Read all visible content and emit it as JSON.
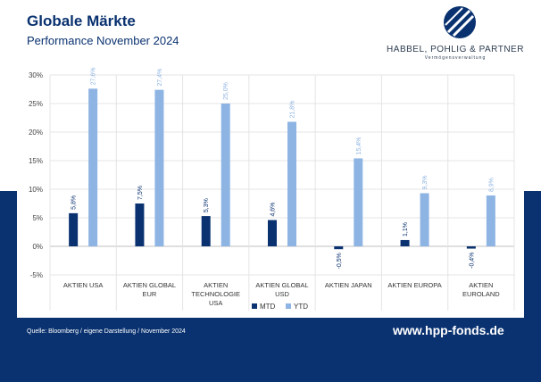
{
  "header": {
    "title": "Globale Märkte",
    "subtitle": "Performance November 2024"
  },
  "logo": {
    "name": "HABBEL, POHLIG & PARTNER",
    "tagline": "Vermögensverwaltung"
  },
  "footer": {
    "source": "Quelle: Bloomberg / eigene Darstellung / November 2024",
    "website": "www.hpp-fonds.de"
  },
  "colors": {
    "navy": "#0a3270",
    "mtd": "#0a3270",
    "ytd": "#8eb4e3"
  },
  "chart_data": {
    "type": "bar",
    "categories": [
      [
        "AKTIEN USA"
      ],
      [
        "AKTIEN GLOBAL",
        "EUR"
      ],
      [
        "AKTIEN",
        "TECHNOLOGIE",
        "USA"
      ],
      [
        "AKTIEN GLOBAL",
        "USD"
      ],
      [
        "AKTIEN JAPAN"
      ],
      [
        "AKTIEN EUROPA"
      ],
      [
        "AKTIEN",
        "EUROLAND"
      ]
    ],
    "series": [
      {
        "name": "MTD",
        "values": [
          5.8,
          7.5,
          5.3,
          4.6,
          -0.5,
          1.1,
          -0.4
        ],
        "labels": [
          "5,8%",
          "7,5%",
          "5,3%",
          "4,6%",
          "-0,5%",
          "1,1%",
          "-0,4%"
        ]
      },
      {
        "name": "YTD",
        "values": [
          27.6,
          27.4,
          25.0,
          21.8,
          15.4,
          9.3,
          8.9
        ],
        "labels": [
          "27,6%",
          "27,4%",
          "25,0%",
          "21,8%",
          "15,4%",
          "9,3%",
          "8,9%"
        ]
      }
    ],
    "yticks": [
      "-5%",
      "0%",
      "5%",
      "10%",
      "15%",
      "20%",
      "25%",
      "30%"
    ],
    "ylim": [
      -5,
      30
    ],
    "legend_position": "bottom",
    "grid": true
  }
}
